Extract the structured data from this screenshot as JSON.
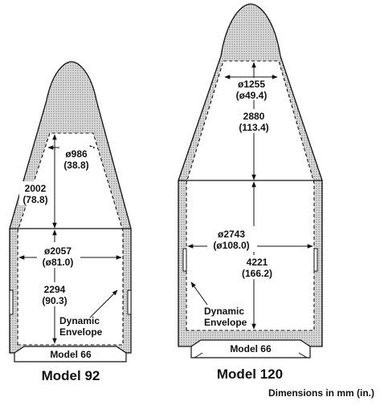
{
  "colors": {
    "stroke": "#111111",
    "shell_fill": "#d7d7d7",
    "background": "#ffffff"
  },
  "model92": {
    "title": "Model 92",
    "adapter_label": "Model 66",
    "dim_top_diameter": "ø986",
    "dim_top_diameter_in": "(38.8)",
    "dim_cone_height": "2002",
    "dim_cone_height_in": "(78.8)",
    "dim_body_diameter": "ø2057",
    "dim_body_diameter_in": "(ø81.0)",
    "dim_body_height": "2294",
    "dim_body_height_in": "(90.3)",
    "envelope_label_line1": "Dynamic",
    "envelope_label_line2": "Envelope"
  },
  "model120": {
    "title": "Model 120",
    "adapter_label": "Model 66",
    "dim_top_diameter": "ø1255",
    "dim_top_diameter_in": "(ø49.4)",
    "dim_cone_height": "2880",
    "dim_cone_height_in": "(113.4)",
    "dim_body_diameter": "ø2743",
    "dim_body_diameter_in": "(ø108.0)",
    "dim_body_height": "4221",
    "dim_body_height_in": "(166.2)",
    "envelope_label_line1": "Dynamic",
    "envelope_label_line2": "Envelope"
  },
  "units_note": "Dimensions in mm (in.)"
}
